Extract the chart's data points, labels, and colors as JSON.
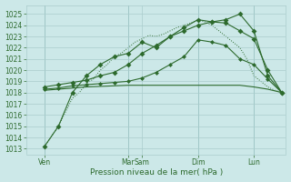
{
  "title": "",
  "xlabel": "Pression niveau de la mer( hPa )",
  "background_color": "#cce8e8",
  "grid_color": "#aacccc",
  "line_color": "#2d6a2d",
  "ylim": [
    1012.5,
    1025.8
  ],
  "yticks": [
    1013,
    1014,
    1015,
    1016,
    1017,
    1018,
    1019,
    1020,
    1021,
    1022,
    1023,
    1024,
    1025
  ],
  "xlim": [
    -0.3,
    18.3
  ],
  "xtick_positions": [
    1,
    7,
    8,
    12,
    16
  ],
  "xtick_labels": [
    "Ven",
    "Mar",
    "Sam",
    "Dim",
    "Lun"
  ],
  "vlines": [
    1,
    7,
    12,
    16
  ],
  "series_dotted": {
    "x": [
      1,
      2,
      3,
      3.5,
      4,
      4.5,
      5,
      5.5,
      6,
      6.5,
      7,
      7.5,
      8,
      8.5,
      9,
      9.5,
      10,
      10.5,
      11,
      11.5,
      12,
      12.5,
      13,
      13.5,
      14,
      14.5,
      15,
      15.5,
      16,
      16.5,
      17,
      17.5,
      18
    ],
    "y": [
      1013.2,
      1015.0,
      1017.5,
      1018.0,
      1018.8,
      1019.2,
      1020.0,
      1020.5,
      1021.2,
      1021.5,
      1022.0,
      1022.5,
      1022.8,
      1023.1,
      1023.0,
      1023.2,
      1023.5,
      1023.8,
      1024.0,
      1024.2,
      1024.5,
      1024.3,
      1024.0,
      1023.5,
      1023.0,
      1022.5,
      1022.0,
      1021.0,
      1019.5,
      1019.0,
      1018.5,
      1018.2,
      1018.0
    ]
  },
  "series1": {
    "x": [
      1,
      2,
      3,
      4,
      5,
      6,
      7,
      8,
      9,
      10,
      11,
      12,
      13,
      14,
      15,
      16,
      17,
      18
    ],
    "y": [
      1013.2,
      1015.0,
      1018.0,
      1019.5,
      1020.5,
      1021.2,
      1021.5,
      1022.5,
      1022.0,
      1023.0,
      1023.5,
      1024.0,
      1024.3,
      1024.5,
      1025.0,
      1023.5,
      1019.5,
      1018.0
    ]
  },
  "series2": {
    "x": [
      1,
      2,
      3,
      4,
      5,
      6,
      7,
      8,
      9,
      10,
      11,
      12,
      13,
      14,
      15,
      16,
      17,
      18
    ],
    "y": [
      1018.5,
      1018.7,
      1018.9,
      1019.1,
      1019.5,
      1019.8,
      1020.5,
      1021.5,
      1022.2,
      1023.0,
      1023.8,
      1024.5,
      1024.3,
      1024.2,
      1023.5,
      1022.8,
      1020.0,
      1018.0
    ]
  },
  "series3": {
    "x": [
      1,
      2,
      3,
      4,
      5,
      6,
      7,
      8,
      9,
      10,
      11,
      12,
      13,
      14,
      15,
      16,
      17,
      18
    ],
    "y": [
      1018.3,
      1018.4,
      1018.6,
      1018.7,
      1018.8,
      1018.9,
      1019.0,
      1019.3,
      1019.8,
      1020.5,
      1021.2,
      1022.7,
      1022.5,
      1022.2,
      1021.0,
      1020.5,
      1019.2,
      1018.0
    ]
  },
  "series4_flat": {
    "x": [
      1,
      2,
      3,
      4,
      5,
      6,
      7,
      8,
      9,
      10,
      11,
      12,
      13,
      14,
      15,
      16,
      17,
      18
    ],
    "y": [
      1018.2,
      1018.3,
      1018.4,
      1018.5,
      1018.55,
      1018.6,
      1018.65,
      1018.65,
      1018.65,
      1018.65,
      1018.65,
      1018.65,
      1018.65,
      1018.65,
      1018.65,
      1018.5,
      1018.3,
      1018.0
    ]
  }
}
